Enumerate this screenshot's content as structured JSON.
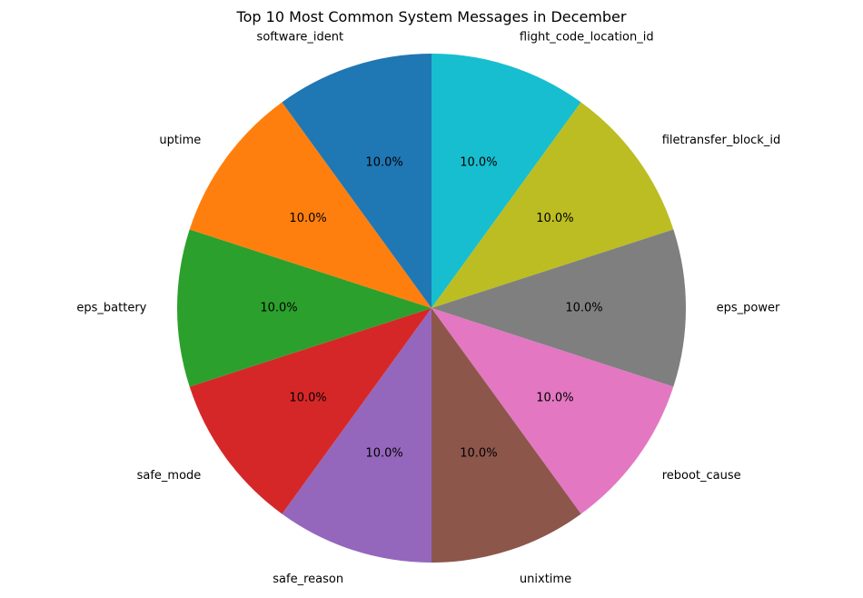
{
  "chart_data": {
    "type": "pie",
    "title": "Top 10 Most Common System Messages in December",
    "categories": [
      "flight_code_location_id",
      "filetransfer_block_id",
      "eps_power",
      "reboot_cause",
      "unixtime",
      "safe_reason",
      "safe_mode",
      "eps_battery",
      "uptime",
      "software_ident"
    ],
    "values": [
      10.0,
      10.0,
      10.0,
      10.0,
      10.0,
      10.0,
      10.0,
      10.0,
      10.0,
      10.0
    ],
    "percent_labels": [
      "10.0%",
      "10.0%",
      "10.0%",
      "10.0%",
      "10.0%",
      "10.0%",
      "10.0%",
      "10.0%",
      "10.0%",
      "10.0%"
    ],
    "colors": [
      "#17becf",
      "#bcbd22",
      "#7f7f7f",
      "#e377c2",
      "#8c564b",
      "#9467bd",
      "#d62728",
      "#2ca02c",
      "#ff7f0e",
      "#1f77b4"
    ],
    "start_angle_deg": 90,
    "direction": "clockwise",
    "legend": "none"
  }
}
